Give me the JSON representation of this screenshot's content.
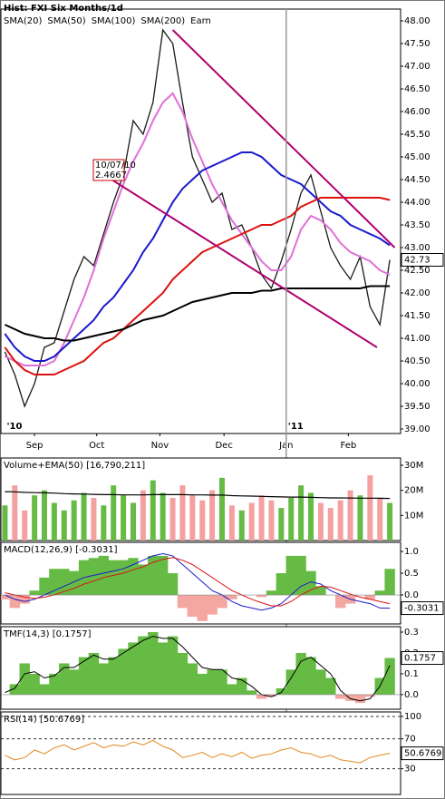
{
  "chart_data": [
    {
      "type": "line",
      "title": "Hist: FXI Six Months/1d",
      "xlim": [
        -0.5,
        40
      ],
      "ylim": [
        38.9,
        48.26
      ],
      "yticks": [
        {
          "value": 39,
          "label": "39.00"
        },
        {
          "value": 39.5,
          "label": "39.50"
        },
        {
          "value": 40,
          "label": "40.00"
        },
        {
          "value": 40.5,
          "label": "40.50"
        },
        {
          "value": 41,
          "label": "41.00"
        },
        {
          "value": 41.5,
          "label": "41.50"
        },
        {
          "value": 42,
          "label": "42.00"
        },
        {
          "value": 42.5,
          "label": "42.50"
        },
        {
          "value": 43,
          "label": "43.00"
        },
        {
          "value": 43.5,
          "label": "43.50"
        },
        {
          "value": 44,
          "label": "44.00"
        },
        {
          "value": 44.5,
          "label": "44.50"
        },
        {
          "value": 45,
          "label": "45.00"
        },
        {
          "value": 45.5,
          "label": "45.50"
        },
        {
          "value": 46,
          "label": "46.00"
        },
        {
          "value": 46.5,
          "label": "46.50"
        },
        {
          "value": 47,
          "label": "47.00"
        },
        {
          "value": 47.5,
          "label": "47.50"
        },
        {
          "value": 48,
          "label": "48.00"
        }
      ],
      "xticks": [
        {
          "value": 3,
          "label": "Sep"
        },
        {
          "value": 9.3,
          "label": "Oct"
        },
        {
          "value": 15.7,
          "label": "Nov"
        },
        {
          "value": 22.2,
          "label": "Dec"
        },
        {
          "value": 28.5,
          "label": "Jan"
        },
        {
          "value": 34.8,
          "label": "Feb"
        }
      ],
      "year_ticks": [
        {
          "value": 0,
          "label": "'10"
        },
        {
          "value": 28.5,
          "label": "'11"
        }
      ],
      "last_value": 42.73,
      "series": [
        {
          "style": "line",
          "color": "#1a1a1a",
          "width": 1.3,
          "values": [
            40.7,
            40.2,
            39.5,
            40.0,
            40.8,
            40.9,
            41.6,
            42.3,
            42.8,
            42.6,
            43.3,
            44.0,
            44.6,
            45.8,
            45.5,
            46.2,
            47.8,
            47.5,
            46.2,
            45.0,
            44.5,
            44.0,
            44.2,
            43.4,
            43.5,
            43.0,
            42.4,
            42.1,
            42.7,
            43.4,
            44.2,
            44.6,
            43.8,
            43.0,
            42.6,
            42.3,
            42.8,
            41.7,
            41.3,
            42.73
          ]
        },
        {
          "name": "SMA(20)",
          "style": "line",
          "color": "#e070d8",
          "width": 2,
          "values": [
            40.6,
            40.5,
            40.4,
            40.4,
            40.4,
            40.5,
            40.9,
            41.4,
            41.9,
            42.5,
            43.2,
            43.8,
            44.4,
            44.9,
            45.3,
            45.8,
            46.2,
            46.4,
            46.0,
            45.4,
            44.9,
            44.4,
            44.0,
            43.6,
            43.3,
            43.0,
            42.7,
            42.5,
            42.5,
            42.8,
            43.4,
            43.7,
            43.6,
            43.4,
            43.1,
            42.9,
            42.8,
            42.7,
            42.5,
            42.4
          ]
        },
        {
          "name": "SMA(50)",
          "style": "line",
          "color": "#1a1acc",
          "width": 2,
          "values": [
            41.1,
            40.8,
            40.6,
            40.5,
            40.5,
            40.6,
            40.8,
            41.0,
            41.2,
            41.4,
            41.7,
            41.9,
            42.2,
            42.5,
            42.9,
            43.2,
            43.6,
            44.0,
            44.3,
            44.5,
            44.7,
            44.8,
            44.9,
            45.0,
            45.1,
            45.1,
            45.0,
            44.8,
            44.6,
            44.5,
            44.4,
            44.2,
            44.0,
            43.8,
            43.7,
            43.5,
            43.4,
            43.3,
            43.2,
            43.05
          ]
        },
        {
          "name": "SMA(100)",
          "style": "line",
          "color": "#dd1111",
          "width": 2,
          "values": [
            40.8,
            40.5,
            40.3,
            40.2,
            40.2,
            40.2,
            40.3,
            40.4,
            40.5,
            40.7,
            40.9,
            41.0,
            41.2,
            41.4,
            41.6,
            41.8,
            42.0,
            42.3,
            42.5,
            42.7,
            42.9,
            43.0,
            43.1,
            43.2,
            43.3,
            43.4,
            43.5,
            43.5,
            43.6,
            43.7,
            43.9,
            44.0,
            44.1,
            44.1,
            44.1,
            44.1,
            44.1,
            44.1,
            44.1,
            44.05
          ]
        },
        {
          "name": "SMA(200)",
          "style": "line",
          "color": "#000000",
          "width": 2,
          "values": [
            41.3,
            41.2,
            41.1,
            41.05,
            41.0,
            41.0,
            40.95,
            40.95,
            41.0,
            41.05,
            41.1,
            41.15,
            41.2,
            41.3,
            41.4,
            41.45,
            41.5,
            41.6,
            41.7,
            41.8,
            41.85,
            41.9,
            41.95,
            42.0,
            42.0,
            42.0,
            42.05,
            42.05,
            42.1,
            42.1,
            42.1,
            42.1,
            42.1,
            42.1,
            42.1,
            42.1,
            42.1,
            42.15,
            42.15,
            42.15
          ]
        }
      ],
      "legend_extra": [
        {
          "name": "Earn",
          "color": "#e00000"
        }
      ],
      "trendlines": [
        {
          "color": "#b0006e",
          "x": [
            17,
            39.5
          ],
          "values": [
            47.8,
            43.0
          ]
        },
        {
          "color": "#b0006e",
          "x": [
            9,
            37.7
          ],
          "values": [
            44.75,
            40.8
          ]
        }
      ],
      "annotation": [
        "10/07/10",
        "2.4667"
      ]
    },
    {
      "type": "bar",
      "legend": "Volume+EMA(50) [16,790,211]",
      "xlim": [
        -0.5,
        40
      ],
      "ylim": [
        0,
        32900000
      ],
      "yticks": [
        {
          "value": 10000000,
          "label": "10M"
        },
        {
          "value": 20000000,
          "label": "20M"
        },
        {
          "value": 30000000,
          "label": "30M"
        }
      ],
      "series": [
        {
          "style": "bar",
          "color": "#66bb44",
          "negative_color": "#f4a0a0",
          "values": [
            14000000,
            22000000,
            12000000,
            18000000,
            20000000,
            15000000,
            12000000,
            16000000,
            19000000,
            17000000,
            14000000,
            22000000,
            18000000,
            15000000,
            20000000,
            24000000,
            19000000,
            17000000,
            22000000,
            18000000,
            16000000,
            20000000,
            25000000,
            14000000,
            12000000,
            15000000,
            18000000,
            16000000,
            13000000,
            17000000,
            22000000,
            19000000,
            15000000,
            13000000,
            16000000,
            20000000,
            18000000,
            26000000,
            17000000,
            15000000
          ]
        },
        {
          "style": "line",
          "color": "#000000",
          "width": 1.2,
          "values": [
            19500000,
            19400000,
            19200000,
            19100000,
            19000000,
            18900000,
            18700000,
            18600000,
            18500000,
            18400000,
            18300000,
            18300000,
            18200000,
            18200000,
            18200000,
            18300000,
            18300000,
            18300000,
            18300000,
            18200000,
            18200000,
            18100000,
            18100000,
            17900000,
            17800000,
            17700000,
            17600000,
            17500000,
            17400000,
            17300000,
            17300000,
            17200000,
            17100000,
            17000000,
            17000000,
            16950000,
            16900000,
            16900000,
            16850000,
            16790211
          ]
        }
      ]
    },
    {
      "type": "area",
      "legend": "MACD(12,26,9) [-0.3031]",
      "xlim": [
        -0.5,
        40
      ],
      "ylim": [
        -0.667,
        1.21
      ],
      "last_value": -0.3031,
      "yticks": [
        {
          "value": 1,
          "label": "1.0"
        },
        0.5,
        {
          "value": 0,
          "label": "0.0"
        }
      ],
      "series": [
        {
          "style": "area",
          "color": "#66bb44",
          "negative_color": "#f4a6a0",
          "values": [
            -0.1,
            -0.3,
            -0.2,
            0.1,
            0.4,
            0.6,
            0.6,
            0.55,
            0.8,
            0.85,
            0.9,
            0.8,
            0.8,
            0.85,
            0.7,
            0.9,
            0.9,
            0.5,
            -0.3,
            -0.5,
            -0.6,
            -0.45,
            -0.3,
            -0.1,
            0.0,
            0.0,
            -0.05,
            0.1,
            0.5,
            0.9,
            0.9,
            0.55,
            0.2,
            0.0,
            -0.3,
            -0.2,
            0.0,
            -0.1,
            0.1,
            0.6
          ]
        },
        {
          "style": "line",
          "color": "#1a1acc",
          "width": 1,
          "values": [
            0.0,
            -0.1,
            -0.15,
            -0.1,
            0.0,
            0.1,
            0.2,
            0.3,
            0.4,
            0.45,
            0.5,
            0.55,
            0.6,
            0.7,
            0.8,
            0.9,
            0.95,
            0.9,
            0.7,
            0.5,
            0.3,
            0.1,
            0.0,
            -0.15,
            -0.25,
            -0.3,
            -0.35,
            -0.3,
            -0.2,
            0.0,
            0.2,
            0.3,
            0.25,
            0.1,
            0.0,
            -0.1,
            -0.15,
            -0.2,
            -0.3,
            -0.3031
          ]
        },
        {
          "style": "line",
          "color": "#dd1111",
          "width": 1,
          "values": [
            0.05,
            0.0,
            -0.05,
            -0.08,
            -0.05,
            0.0,
            0.08,
            0.15,
            0.25,
            0.32,
            0.4,
            0.45,
            0.5,
            0.58,
            0.65,
            0.75,
            0.82,
            0.86,
            0.8,
            0.7,
            0.55,
            0.4,
            0.25,
            0.1,
            0.0,
            -0.1,
            -0.18,
            -0.25,
            -0.25,
            -0.15,
            0.0,
            0.12,
            0.2,
            0.18,
            0.1,
            0.02,
            -0.05,
            -0.1,
            -0.15,
            -0.2
          ]
        }
      ]
    },
    {
      "type": "area",
      "legend": "TMF(14,3) [0.1757]",
      "xlim": [
        -0.5,
        40
      ],
      "ylim": [
        -0.07,
        0.326
      ],
      "last_value": 0.1757,
      "yticks": [
        0.3,
        0.2,
        0.1,
        {
          "value": 0,
          "label": "0.0"
        }
      ],
      "series": [
        {
          "style": "area",
          "color": "#66bb44",
          "negative_color": "#f4a6a0",
          "values": [
            0.0,
            0.05,
            0.15,
            0.1,
            0.05,
            0.1,
            0.15,
            0.12,
            0.18,
            0.2,
            0.15,
            0.18,
            0.22,
            0.25,
            0.28,
            0.3,
            0.25,
            0.28,
            0.2,
            0.15,
            0.1,
            0.12,
            0.12,
            0.05,
            0.08,
            0.02,
            -0.02,
            -0.01,
            0.03,
            0.12,
            0.2,
            0.18,
            0.12,
            0.08,
            -0.02,
            -0.03,
            -0.04,
            -0.01,
            0.08,
            0.1757
          ]
        },
        {
          "style": "line",
          "color": "#000000",
          "width": 1,
          "values": [
            0.01,
            0.03,
            0.1,
            0.11,
            0.08,
            0.09,
            0.13,
            0.13,
            0.16,
            0.19,
            0.17,
            0.17,
            0.2,
            0.23,
            0.26,
            0.28,
            0.27,
            0.27,
            0.23,
            0.18,
            0.13,
            0.12,
            0.12,
            0.08,
            0.07,
            0.04,
            0.0,
            -0.01,
            0.01,
            0.08,
            0.16,
            0.18,
            0.14,
            0.1,
            0.02,
            -0.02,
            -0.03,
            -0.02,
            0.04,
            0.14
          ]
        }
      ]
    },
    {
      "type": "line",
      "legend": "RSI(14) [50.6769]",
      "xlim": [
        -0.5,
        40
      ],
      "ylim": [
        -4.4,
        106
      ],
      "last_value": 50.6769,
      "grid": "dashed",
      "yticks": [
        100,
        70,
        30
      ],
      "series": [
        {
          "style": "line",
          "color": "#e08a1e",
          "width": 1,
          "values": [
            48,
            42,
            45,
            55,
            50,
            58,
            62,
            55,
            60,
            65,
            58,
            62,
            60,
            66,
            62,
            68,
            60,
            55,
            45,
            48,
            52,
            45,
            50,
            46,
            52,
            44,
            48,
            50,
            55,
            58,
            52,
            50,
            45,
            48,
            42,
            40,
            38,
            45,
            48,
            50.6769
          ]
        }
      ]
    }
  ]
}
